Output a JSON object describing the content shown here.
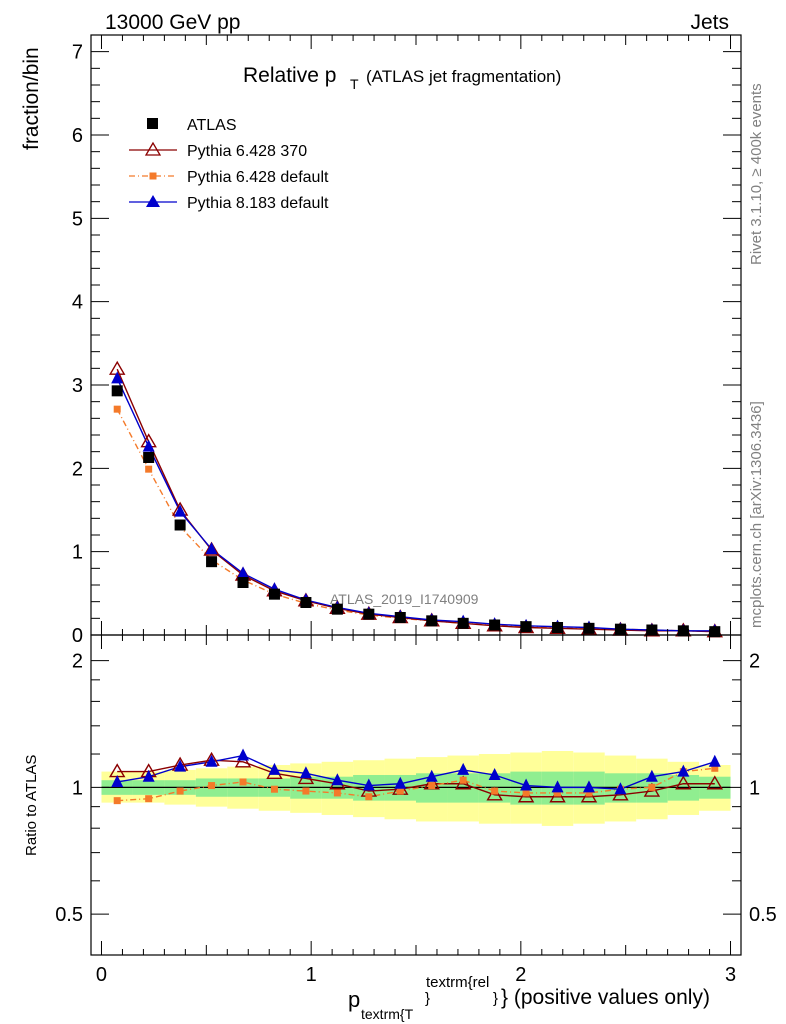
{
  "header": {
    "energy_label": "13000 GeV pp",
    "category_label": "Jets",
    "title_main": "Relative p",
    "title_sub": "T",
    "title_rest": "(ATLAS jet fragmentation)",
    "side_label_top": "Rivet 3.1.10, ≥ 400k events",
    "side_label_bottom": "mcplots.cern.ch [arXiv:1306.3436]",
    "watermark": "ATLAS_2019_I1740909"
  },
  "colors": {
    "atlas": "#000000",
    "py6_370": "#8b0000",
    "py6_default": "#f47a2a",
    "py8": "#0000cc",
    "band_outer": "#ffff99",
    "band_inner": "#90ee90"
  },
  "chart_data": [
    {
      "type": "line",
      "panel": "main",
      "ylabel": "fraction/bin",
      "xlim": [
        -0.05,
        3.05
      ],
      "ylim": [
        0,
        7.2
      ],
      "y_ticks": [
        "0",
        "1",
        "2",
        "3",
        "4",
        "5",
        "6",
        "7"
      ],
      "legend_position": "top-left",
      "x": [
        0.075,
        0.225,
        0.375,
        0.525,
        0.675,
        0.825,
        0.975,
        1.125,
        1.275,
        1.425,
        1.575,
        1.725,
        1.875,
        2.025,
        2.175,
        2.325,
        2.475,
        2.625,
        2.775,
        2.925
      ],
      "series": [
        {
          "name": "ATLAS",
          "marker": "square",
          "values": [
            2.93,
            2.13,
            1.32,
            0.88,
            0.63,
            0.49,
            0.39,
            0.31,
            0.25,
            0.21,
            0.17,
            0.14,
            0.12,
            0.1,
            0.09,
            0.08,
            0.07,
            0.06,
            0.05,
            0.04
          ]
        },
        {
          "name": "Pythia 6.428 370",
          "marker": "open-triangle",
          "values": [
            3.19,
            2.32,
            1.5,
            1.02,
            0.72,
            0.53,
            0.41,
            0.32,
            0.25,
            0.21,
            0.17,
            0.14,
            0.11,
            0.09,
            0.08,
            0.07,
            0.06,
            0.05,
            0.05,
            0.04
          ]
        },
        {
          "name": "Pythia 6.428 default",
          "marker": "small-square",
          "values": [
            2.71,
            1.99,
            1.3,
            0.9,
            0.66,
            0.49,
            0.38,
            0.3,
            0.24,
            0.2,
            0.17,
            0.14,
            0.12,
            0.1,
            0.09,
            0.08,
            0.07,
            0.06,
            0.05,
            0.04
          ]
        },
        {
          "name": "Pythia 8.183 default",
          "marker": "triangle",
          "values": [
            3.08,
            2.26,
            1.48,
            1.03,
            0.74,
            0.55,
            0.42,
            0.33,
            0.26,
            0.22,
            0.18,
            0.16,
            0.13,
            0.11,
            0.1,
            0.09,
            0.07,
            0.06,
            0.05,
            0.05
          ]
        }
      ]
    },
    {
      "type": "line",
      "panel": "ratio",
      "ylabel": "Ratio to ATLAS",
      "xlabel_main": "p",
      "xlabel_sub": "textrm{T",
      "xlabel_sup": "textrm{rel",
      "xlabel_rest": "} (positive values only)",
      "xlim": [
        -0.05,
        3.05
      ],
      "ylim": [
        0.4,
        2.3
      ],
      "y_scale": "log",
      "x_ticks": [
        "0",
        "1",
        "2",
        "3"
      ],
      "y_ticks": [
        "0.5",
        "1",
        "2"
      ],
      "x": [
        0.075,
        0.225,
        0.375,
        0.525,
        0.675,
        0.825,
        0.975,
        1.125,
        1.275,
        1.425,
        1.575,
        1.725,
        1.875,
        2.025,
        2.175,
        2.325,
        2.475,
        2.625,
        2.775,
        2.925
      ],
      "uncertainty_band": {
        "outer_lo": [
          0.92,
          0.92,
          0.91,
          0.9,
          0.89,
          0.88,
          0.87,
          0.86,
          0.85,
          0.84,
          0.83,
          0.83,
          0.82,
          0.82,
          0.81,
          0.82,
          0.83,
          0.84,
          0.86,
          0.88
        ],
        "outer_hi": [
          1.09,
          1.09,
          1.1,
          1.11,
          1.12,
          1.13,
          1.14,
          1.15,
          1.16,
          1.17,
          1.18,
          1.19,
          1.2,
          1.21,
          1.22,
          1.21,
          1.19,
          1.17,
          1.15,
          1.13
        ],
        "inner_lo": [
          0.96,
          0.96,
          0.96,
          0.95,
          0.95,
          0.95,
          0.94,
          0.94,
          0.93,
          0.93,
          0.92,
          0.92,
          0.92,
          0.91,
          0.91,
          0.91,
          0.92,
          0.92,
          0.93,
          0.94
        ],
        "inner_hi": [
          1.04,
          1.04,
          1.04,
          1.05,
          1.05,
          1.05,
          1.06,
          1.06,
          1.07,
          1.07,
          1.08,
          1.08,
          1.08,
          1.09,
          1.09,
          1.09,
          1.08,
          1.08,
          1.07,
          1.06
        ]
      },
      "series": [
        {
          "name": "Pythia 6.428 370",
          "marker": "open-triangle",
          "values": [
            1.09,
            1.09,
            1.13,
            1.16,
            1.15,
            1.08,
            1.05,
            1.02,
            0.98,
            0.99,
            1.02,
            1.02,
            0.96,
            0.95,
            0.95,
            0.95,
            0.96,
            0.98,
            1.02,
            1.02
          ]
        },
        {
          "name": "Pythia 6.428 default",
          "marker": "small-square",
          "values": [
            0.93,
            0.94,
            0.98,
            1.01,
            1.03,
            0.99,
            0.98,
            0.97,
            0.95,
            0.98,
            1.01,
            1.04,
            0.98,
            0.97,
            0.97,
            0.97,
            0.99,
            1.0,
            1.09,
            1.11
          ]
        },
        {
          "name": "Pythia 8.183 default",
          "marker": "triangle",
          "values": [
            1.03,
            1.06,
            1.12,
            1.15,
            1.19,
            1.1,
            1.08,
            1.04,
            1.01,
            1.02,
            1.06,
            1.1,
            1.07,
            1.01,
            1.0,
            1.0,
            0.99,
            1.06,
            1.09,
            1.15
          ]
        }
      ]
    }
  ]
}
